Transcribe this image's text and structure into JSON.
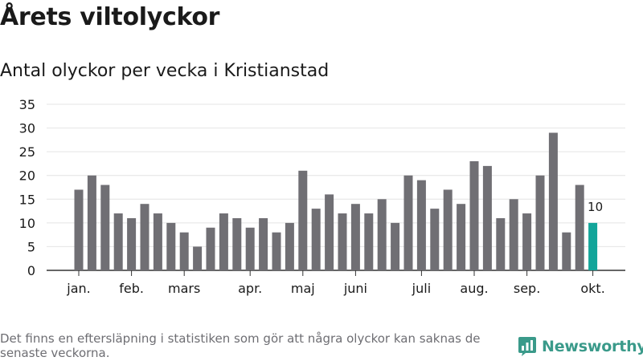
{
  "header": {
    "title": "Årets viltolyckor",
    "subtitle": "Antal olyckor per vecka i Kristianstad"
  },
  "footer": {
    "note": "Det finns en eftersläpning i statistiken som gör att några olyckor kan saknas de senaste veckorna.",
    "brand": "Newsworthy",
    "logo_icon": "bar-chart-logo-icon"
  },
  "colors": {
    "bar": "#706f74",
    "highlight": "#12a59a",
    "grid": "#e4e4e4",
    "axis": "#333333"
  },
  "chart_data": {
    "type": "bar",
    "title": "Årets viltolyckor",
    "subtitle": "Antal olyckor per vecka i Kristianstad",
    "xlabel": "",
    "ylabel": "",
    "ylim": [
      0,
      35
    ],
    "yticks": [
      0,
      5,
      10,
      15,
      20,
      25,
      30,
      35
    ],
    "grid": true,
    "values": [
      17,
      20,
      18,
      12,
      11,
      14,
      12,
      10,
      8,
      5,
      9,
      12,
      11,
      9,
      11,
      8,
      10,
      21,
      13,
      16,
      12,
      14,
      12,
      15,
      10,
      20,
      19,
      13,
      17,
      14,
      23,
      22,
      11,
      15,
      12,
      20,
      29,
      8,
      18,
      10
    ],
    "highlight_index": 39,
    "highlight_label": "10",
    "month_labels": [
      {
        "label": "jan.",
        "index": 0
      },
      {
        "label": "feb.",
        "index": 4
      },
      {
        "label": "mars",
        "index": 8
      },
      {
        "label": "apr.",
        "index": 13
      },
      {
        "label": "maj",
        "index": 17
      },
      {
        "label": "juni",
        "index": 21
      },
      {
        "label": "juli",
        "index": 26
      },
      {
        "label": "aug.",
        "index": 30
      },
      {
        "label": "sep.",
        "index": 34
      },
      {
        "label": "okt.",
        "index": 39
      }
    ]
  }
}
